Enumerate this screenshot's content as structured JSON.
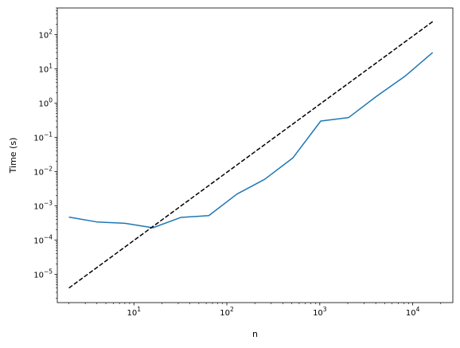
{
  "chart_data": {
    "type": "line",
    "title": "",
    "xlabel": "n",
    "ylabel": "Time (s)",
    "xscale": "log",
    "yscale": "log",
    "xlim": [
      1.5,
      27000
    ],
    "ylim": [
      1.5e-06,
      600
    ],
    "grid": false,
    "legend": "none",
    "xticks": [
      {
        "base": "10",
        "exp": "1",
        "value": 10
      },
      {
        "base": "10",
        "exp": "2",
        "value": 100
      },
      {
        "base": "10",
        "exp": "3",
        "value": 1000
      },
      {
        "base": "10",
        "exp": "4",
        "value": 10000
      }
    ],
    "yticks": [
      {
        "base": "10",
        "exp": "−5",
        "value": 1e-05
      },
      {
        "base": "10",
        "exp": "−4",
        "value": 0.0001
      },
      {
        "base": "10",
        "exp": "−3",
        "value": 0.001
      },
      {
        "base": "10",
        "exp": "−2",
        "value": 0.01
      },
      {
        "base": "10",
        "exp": "−1",
        "value": 0.1
      },
      {
        "base": "10",
        "exp": "0",
        "value": 1
      },
      {
        "base": "10",
        "exp": "1",
        "value": 10
      },
      {
        "base": "10",
        "exp": "2",
        "value": 100
      }
    ],
    "series": [
      {
        "color": "#1f77b4",
        "style": "solid",
        "x": [
          2,
          4,
          8,
          16,
          32,
          64,
          128,
          256,
          512,
          1024,
          2048,
          4096,
          8192,
          16384
        ],
        "y": [
          0.00047,
          0.00034,
          0.00031,
          0.00023,
          0.00046,
          0.00052,
          0.0022,
          0.006,
          0.025,
          0.3,
          0.38,
          1.6,
          6,
          30
        ]
      },
      {
        "color": "#000000",
        "style": "dashed",
        "x": [
          2,
          16384
        ],
        "y": [
          4e-06,
          240
        ]
      }
    ]
  }
}
